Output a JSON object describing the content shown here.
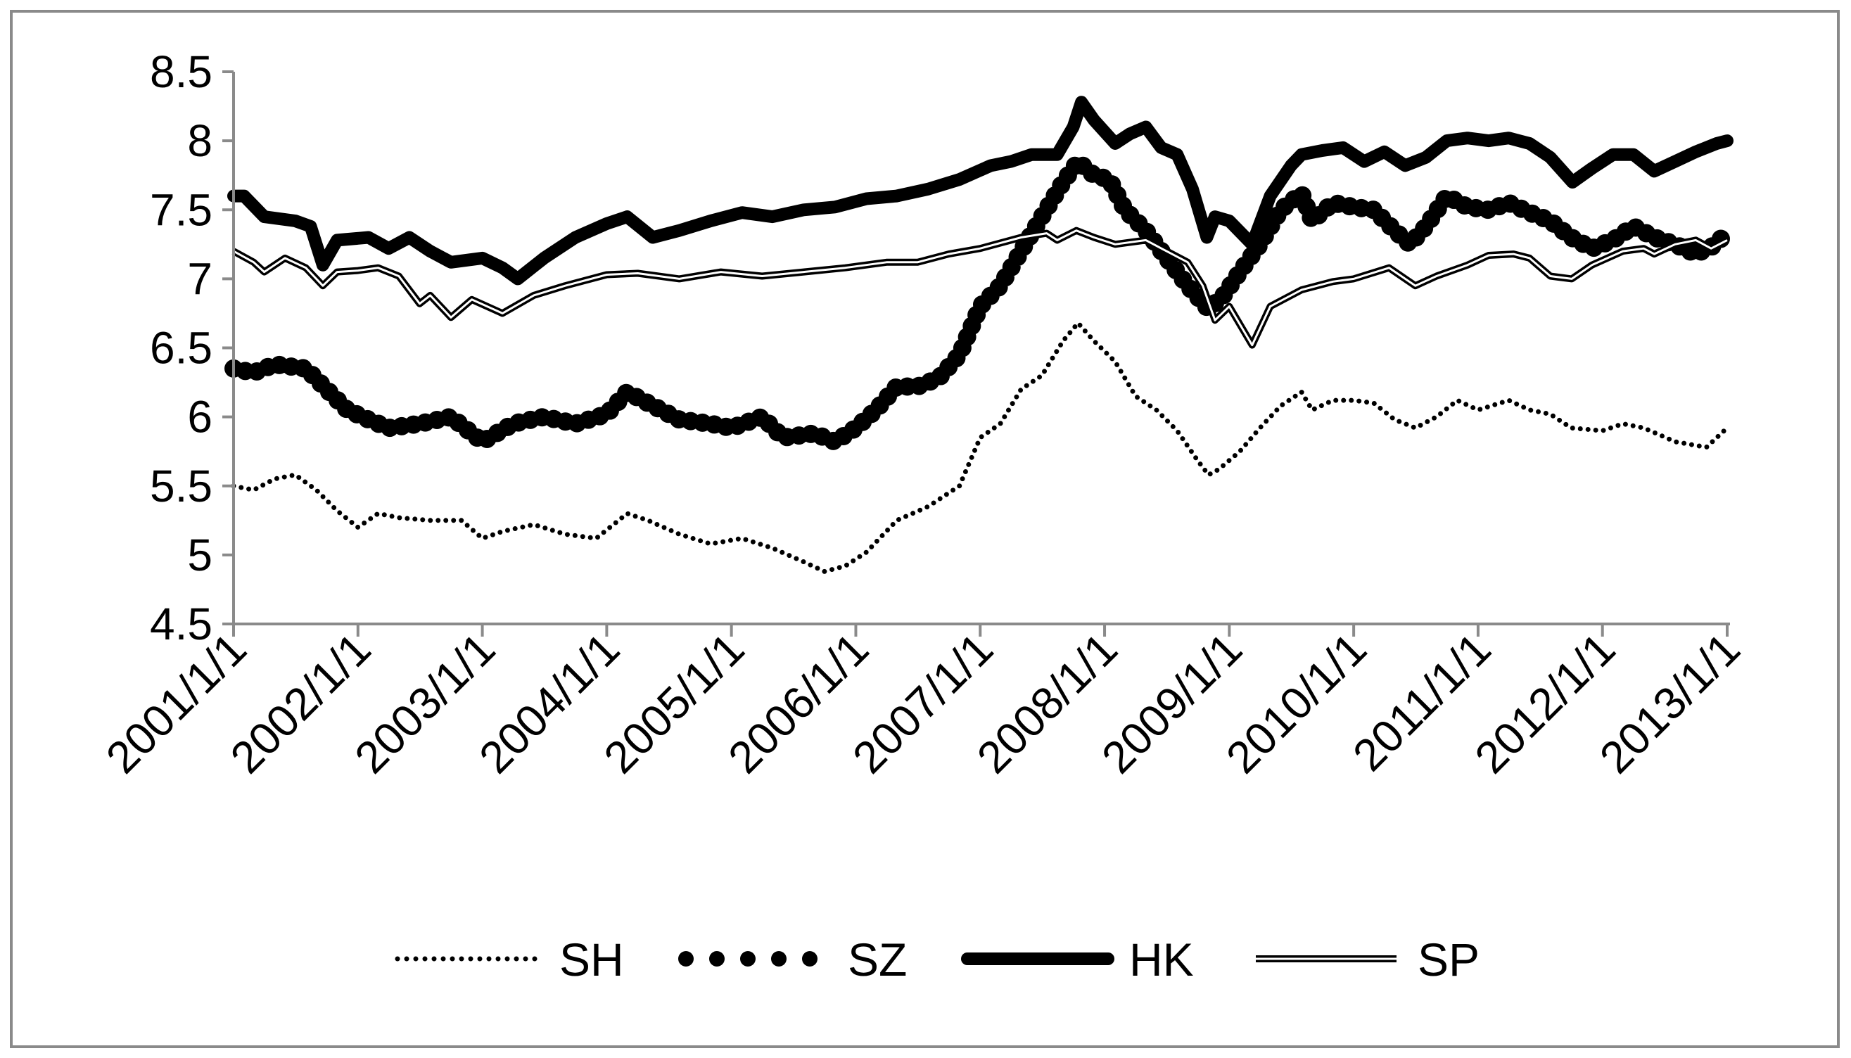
{
  "chart_data": {
    "type": "line",
    "title": "",
    "xlabel": "",
    "ylabel": "",
    "ylim": [
      4.5,
      8.5
    ],
    "y_ticks": [
      "8.5",
      "8",
      "7.5",
      "7",
      "6.5",
      "6",
      "5.5",
      "5",
      "4.5"
    ],
    "x_range": [
      "2001/1/1",
      "2013/1/1"
    ],
    "x_ticks": [
      "2001/1/1",
      "2002/1/1",
      "2003/1/1",
      "2004/1/1",
      "2005/1/1",
      "2006/1/1",
      "2007/1/1",
      "2008/1/1",
      "2009/1/1",
      "2010/1/1",
      "2011/1/1",
      "2012/1/1",
      "2013/1/1"
    ],
    "grid": false,
    "legend_position": "bottom",
    "series": [
      {
        "name": "SH",
        "style": "dotted",
        "color": "#000000",
        "points": [
          [
            "2001/1/1",
            5.5
          ],
          [
            "2001/3/1",
            5.47
          ],
          [
            "2001/5/1",
            5.55
          ],
          [
            "2001/7/1",
            5.58
          ],
          [
            "2001/9/1",
            5.47
          ],
          [
            "2001/11/1",
            5.32
          ],
          [
            "2002/1/1",
            5.2
          ],
          [
            "2002/3/1",
            5.3
          ],
          [
            "2002/5/1",
            5.27
          ],
          [
            "2002/8/1",
            5.25
          ],
          [
            "2002/11/1",
            5.25
          ],
          [
            "2003/1/1",
            5.12
          ],
          [
            "2003/3/1",
            5.17
          ],
          [
            "2003/6/1",
            5.22
          ],
          [
            "2003/9/1",
            5.15
          ],
          [
            "2003/12/1",
            5.12
          ],
          [
            "2004/3/1",
            5.3
          ],
          [
            "2004/5/1",
            5.25
          ],
          [
            "2004/8/1",
            5.15
          ],
          [
            "2004/11/1",
            5.08
          ],
          [
            "2005/2/1",
            5.12
          ],
          [
            "2005/5/1",
            5.05
          ],
          [
            "2005/8/1",
            4.95
          ],
          [
            "2005/10/1",
            4.88
          ],
          [
            "2005/12/1",
            4.92
          ],
          [
            "2006/2/1",
            5.02
          ],
          [
            "2006/5/1",
            5.25
          ],
          [
            "2006/8/1",
            5.35
          ],
          [
            "2006/11/1",
            5.5
          ],
          [
            "2007/1/1",
            5.85
          ],
          [
            "2007/3/1",
            5.95
          ],
          [
            "2007/5/1",
            6.2
          ],
          [
            "2007/7/1",
            6.3
          ],
          [
            "2007/9/1",
            6.55
          ],
          [
            "2007/10/15",
            6.68
          ],
          [
            "2007/12/1",
            6.55
          ],
          [
            "2008/2/1",
            6.4
          ],
          [
            "2008/4/1",
            6.15
          ],
          [
            "2008/6/1",
            6.05
          ],
          [
            "2008/8/1",
            5.9
          ],
          [
            "2008/10/1",
            5.68
          ],
          [
            "2008/11/1",
            5.58
          ],
          [
            "2008/12/1",
            5.62
          ],
          [
            "2009/2/1",
            5.75
          ],
          [
            "2009/4/1",
            5.92
          ],
          [
            "2009/6/1",
            6.08
          ],
          [
            "2009/8/1",
            6.18
          ],
          [
            "2009/9/1",
            6.05
          ],
          [
            "2009/11/1",
            6.12
          ],
          [
            "2010/1/1",
            6.12
          ],
          [
            "2010/3/1",
            6.1
          ],
          [
            "2010/5/1",
            5.98
          ],
          [
            "2010/7/1",
            5.92
          ],
          [
            "2010/9/1",
            6.0
          ],
          [
            "2010/11/1",
            6.12
          ],
          [
            "2011/1/1",
            6.05
          ],
          [
            "2011/4/1",
            6.12
          ],
          [
            "2011/6/1",
            6.05
          ],
          [
            "2011/8/1",
            6.02
          ],
          [
            "2011/10/1",
            5.92
          ],
          [
            "2012/1/1",
            5.9
          ],
          [
            "2012/3/1",
            5.95
          ],
          [
            "2012/5/1",
            5.92
          ],
          [
            "2012/8/1",
            5.82
          ],
          [
            "2012/11/1",
            5.78
          ],
          [
            "2013/1/1",
            5.92
          ]
        ]
      },
      {
        "name": "SZ",
        "style": "big-dots",
        "color": "#000000",
        "points": [
          [
            "2001/1/1",
            6.35
          ],
          [
            "2001/3/1",
            6.32
          ],
          [
            "2001/5/1",
            6.38
          ],
          [
            "2001/8/1",
            6.35
          ],
          [
            "2001/10/1",
            6.2
          ],
          [
            "2001/12/1",
            6.05
          ],
          [
            "2002/2/1",
            5.98
          ],
          [
            "2002/4/1",
            5.92
          ],
          [
            "2002/7/1",
            5.95
          ],
          [
            "2002/10/1",
            6.0
          ],
          [
            "2003/1/1",
            5.82
          ],
          [
            "2003/4/1",
            5.95
          ],
          [
            "2003/7/1",
            6.0
          ],
          [
            "2003/10/1",
            5.95
          ],
          [
            "2004/1/1",
            6.02
          ],
          [
            "2004/3/1",
            6.18
          ],
          [
            "2004/5/1",
            6.1
          ],
          [
            "2004/8/1",
            5.98
          ],
          [
            "2004/11/1",
            5.95
          ],
          [
            "2005/1/1",
            5.92
          ],
          [
            "2005/4/1",
            6.0
          ],
          [
            "2005/6/1",
            5.85
          ],
          [
            "2005/9/1",
            5.88
          ],
          [
            "2005/11/1",
            5.82
          ],
          [
            "2006/1/1",
            5.92
          ],
          [
            "2006/3/1",
            6.05
          ],
          [
            "2006/5/1",
            6.22
          ],
          [
            "2006/7/1",
            6.22
          ],
          [
            "2006/9/1",
            6.28
          ],
          [
            "2006/11/1",
            6.45
          ],
          [
            "2007/1/1",
            6.8
          ],
          [
            "2007/3/1",
            6.95
          ],
          [
            "2007/5/1",
            7.2
          ],
          [
            "2007/7/1",
            7.45
          ],
          [
            "2007/9/1",
            7.7
          ],
          [
            "2007/10/15",
            7.85
          ],
          [
            "2007/12/1",
            7.75
          ],
          [
            "2008/1/15",
            7.72
          ],
          [
            "2008/3/1",
            7.5
          ],
          [
            "2008/5/1",
            7.35
          ],
          [
            "2008/7/1",
            7.15
          ],
          [
            "2008/9/1",
            6.95
          ],
          [
            "2008/11/1",
            6.78
          ],
          [
            "2008/12/15",
            6.88
          ],
          [
            "2009/2/1",
            7.05
          ],
          [
            "2009/4/1",
            7.25
          ],
          [
            "2009/6/1",
            7.5
          ],
          [
            "2009/8/1",
            7.62
          ],
          [
            "2009/9/1",
            7.42
          ],
          [
            "2009/11/1",
            7.55
          ],
          [
            "2010/1/1",
            7.52
          ],
          [
            "2010/3/1",
            7.5
          ],
          [
            "2010/5/1",
            7.35
          ],
          [
            "2010/6/15",
            7.25
          ],
          [
            "2010/8/1",
            7.38
          ],
          [
            "2010/10/1",
            7.6
          ],
          [
            "2010/12/1",
            7.52
          ],
          [
            "2011/2/1",
            7.5
          ],
          [
            "2011/4/1",
            7.55
          ],
          [
            "2011/6/1",
            7.48
          ],
          [
            "2011/8/1",
            7.42
          ],
          [
            "2011/10/1",
            7.3
          ],
          [
            "2011/12/1",
            7.22
          ],
          [
            "2012/2/1",
            7.28
          ],
          [
            "2012/4/1",
            7.38
          ],
          [
            "2012/6/1",
            7.3
          ],
          [
            "2012/8/1",
            7.25
          ],
          [
            "2012/10/1",
            7.18
          ],
          [
            "2012/12/1",
            7.25
          ],
          [
            "2013/1/1",
            7.35
          ]
        ]
      },
      {
        "name": "HK",
        "style": "thick",
        "color": "#000000",
        "points": [
          [
            "2001/1/1",
            7.6
          ],
          [
            "2001/2/1",
            7.6
          ],
          [
            "2001/4/1",
            7.45
          ],
          [
            "2001/7/1",
            7.42
          ],
          [
            "2001/8/15",
            7.38
          ],
          [
            "2001/9/20",
            7.1
          ],
          [
            "2001/11/1",
            7.28
          ],
          [
            "2002/2/1",
            7.3
          ],
          [
            "2002/4/1",
            7.22
          ],
          [
            "2002/6/1",
            7.3
          ],
          [
            "2002/8/1",
            7.2
          ],
          [
            "2002/10/1",
            7.12
          ],
          [
            "2003/1/1",
            7.15
          ],
          [
            "2003/3/1",
            7.08
          ],
          [
            "2003/4/15",
            7.0
          ],
          [
            "2003/7/1",
            7.15
          ],
          [
            "2003/10/1",
            7.3
          ],
          [
            "2004/1/1",
            7.4
          ],
          [
            "2004/3/1",
            7.45
          ],
          [
            "2004/5/15",
            7.3
          ],
          [
            "2004/8/1",
            7.35
          ],
          [
            "2004/11/1",
            7.42
          ],
          [
            "2005/2/1",
            7.48
          ],
          [
            "2005/5/1",
            7.45
          ],
          [
            "2005/8/1",
            7.5
          ],
          [
            "2005/11/1",
            7.52
          ],
          [
            "2006/2/1",
            7.58
          ],
          [
            "2006/5/1",
            7.6
          ],
          [
            "2006/8/1",
            7.65
          ],
          [
            "2006/11/1",
            7.72
          ],
          [
            "2007/2/1",
            7.82
          ],
          [
            "2007/4/1",
            7.85
          ],
          [
            "2007/6/1",
            7.9
          ],
          [
            "2007/8/15",
            7.9
          ],
          [
            "2007/10/1",
            8.1
          ],
          [
            "2007/10/25",
            8.28
          ],
          [
            "2007/12/1",
            8.15
          ],
          [
            "2008/2/1",
            7.98
          ],
          [
            "2008/3/15",
            8.05
          ],
          [
            "2008/5/1",
            8.1
          ],
          [
            "2008/6/15",
            7.95
          ],
          [
            "2008/8/1",
            7.9
          ],
          [
            "2008/9/15",
            7.65
          ],
          [
            "2008/10/27",
            7.3
          ],
          [
            "2008/11/20",
            7.45
          ],
          [
            "2009/1/1",
            7.42
          ],
          [
            "2009/3/9",
            7.25
          ],
          [
            "2009/5/1",
            7.6
          ],
          [
            "2009/7/1",
            7.82
          ],
          [
            "2009/8/1",
            7.9
          ],
          [
            "2009/10/1",
            7.93
          ],
          [
            "2009/12/1",
            7.95
          ],
          [
            "2010/2/1",
            7.85
          ],
          [
            "2010/4/1",
            7.92
          ],
          [
            "2010/6/1",
            7.82
          ],
          [
            "2010/8/1",
            7.88
          ],
          [
            "2010/10/1",
            8.0
          ],
          [
            "2010/12/1",
            8.02
          ],
          [
            "2011/2/1",
            8.0
          ],
          [
            "2011/4/1",
            8.02
          ],
          [
            "2011/6/1",
            7.98
          ],
          [
            "2011/8/1",
            7.88
          ],
          [
            "2011/10/5",
            7.7
          ],
          [
            "2011/12/1",
            7.8
          ],
          [
            "2012/2/1",
            7.9
          ],
          [
            "2012/4/1",
            7.9
          ],
          [
            "2012/6/1",
            7.78
          ],
          [
            "2012/8/1",
            7.85
          ],
          [
            "2012/10/1",
            7.92
          ],
          [
            "2012/12/1",
            7.98
          ],
          [
            "2013/1/1",
            8.0
          ]
        ]
      },
      {
        "name": "SP",
        "style": "double",
        "color": "#000000",
        "points": [
          [
            "2001/1/1",
            7.2
          ],
          [
            "2001/3/1",
            7.12
          ],
          [
            "2001/4/1",
            7.05
          ],
          [
            "2001/6/1",
            7.15
          ],
          [
            "2001/8/1",
            7.08
          ],
          [
            "2001/9/20",
            6.95
          ],
          [
            "2001/11/1",
            7.05
          ],
          [
            "2002/1/1",
            7.06
          ],
          [
            "2002/3/1",
            7.08
          ],
          [
            "2002/5/1",
            7.02
          ],
          [
            "2002/7/1",
            6.82
          ],
          [
            "2002/8/1",
            6.88
          ],
          [
            "2002/10/1",
            6.72
          ],
          [
            "2002/12/1",
            6.85
          ],
          [
            "2003/3/1",
            6.75
          ],
          [
            "2003/6/1",
            6.88
          ],
          [
            "2003/9/1",
            6.95
          ],
          [
            "2004/1/1",
            7.03
          ],
          [
            "2004/4/1",
            7.04
          ],
          [
            "2004/8/1",
            7.0
          ],
          [
            "2004/12/1",
            7.05
          ],
          [
            "2005/4/1",
            7.02
          ],
          [
            "2005/8/1",
            7.05
          ],
          [
            "2005/12/1",
            7.08
          ],
          [
            "2006/4/1",
            7.12
          ],
          [
            "2006/7/1",
            7.12
          ],
          [
            "2006/10/1",
            7.18
          ],
          [
            "2007/1/1",
            7.22
          ],
          [
            "2007/5/1",
            7.3
          ],
          [
            "2007/7/15",
            7.33
          ],
          [
            "2007/8/15",
            7.28
          ],
          [
            "2007/10/10",
            7.35
          ],
          [
            "2007/12/1",
            7.3
          ],
          [
            "2008/2/1",
            7.25
          ],
          [
            "2008/5/1",
            7.28
          ],
          [
            "2008/7/1",
            7.2
          ],
          [
            "2008/9/1",
            7.12
          ],
          [
            "2008/10/15",
            6.95
          ],
          [
            "2008/11/20",
            6.7
          ],
          [
            "2009/1/1",
            6.8
          ],
          [
            "2009/3/9",
            6.52
          ],
          [
            "2009/5/1",
            6.8
          ],
          [
            "2009/8/1",
            6.92
          ],
          [
            "2009/11/1",
            6.98
          ],
          [
            "2010/1/1",
            7.0
          ],
          [
            "2010/4/15",
            7.08
          ],
          [
            "2010/7/1",
            6.95
          ],
          [
            "2010/9/1",
            7.02
          ],
          [
            "2010/12/1",
            7.1
          ],
          [
            "2011/2/1",
            7.17
          ],
          [
            "2011/4/15",
            7.18
          ],
          [
            "2011/6/1",
            7.15
          ],
          [
            "2011/8/1",
            7.02
          ],
          [
            "2011/10/3",
            7.0
          ],
          [
            "2011/12/1",
            7.1
          ],
          [
            "2012/3/1",
            7.2
          ],
          [
            "2012/5/1",
            7.22
          ],
          [
            "2012/6/1",
            7.18
          ],
          [
            "2012/8/1",
            7.25
          ],
          [
            "2012/10/1",
            7.28
          ],
          [
            "2012/11/15",
            7.22
          ],
          [
            "2013/1/1",
            7.28
          ]
        ]
      }
    ]
  }
}
